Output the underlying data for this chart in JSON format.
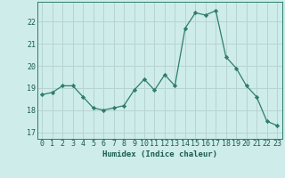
{
  "xlabel": "Humidex (Indice chaleur)",
  "x": [
    0,
    1,
    2,
    3,
    4,
    5,
    6,
    7,
    8,
    9,
    10,
    11,
    12,
    13,
    14,
    15,
    16,
    17,
    18,
    19,
    20,
    21,
    22,
    23
  ],
  "y": [
    18.7,
    18.8,
    19.1,
    19.1,
    18.6,
    18.1,
    18.0,
    18.1,
    18.2,
    18.9,
    19.4,
    18.9,
    19.6,
    19.1,
    21.7,
    22.4,
    22.3,
    22.5,
    20.4,
    19.9,
    19.1,
    18.6,
    17.5,
    17.3
  ],
  "line_color": "#2e7d6e",
  "marker": "D",
  "marker_size": 2.2,
  "bg_color": "#ceecea",
  "grid_color": "#b8d4d2",
  "label_color": "#1a5c52",
  "ylim": [
    16.7,
    22.9
  ],
  "yticks": [
    17,
    18,
    19,
    20,
    21,
    22
  ],
  "xticks": [
    0,
    1,
    2,
    3,
    4,
    5,
    6,
    7,
    8,
    9,
    10,
    11,
    12,
    13,
    14,
    15,
    16,
    17,
    18,
    19,
    20,
    21,
    22,
    23
  ],
  "axis_fontsize": 6.5,
  "tick_fontsize": 6.0
}
